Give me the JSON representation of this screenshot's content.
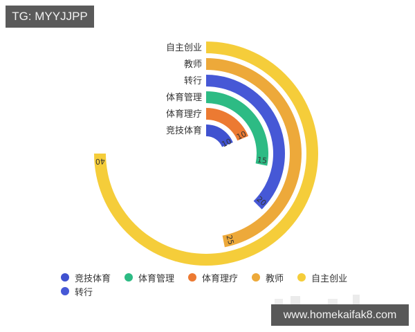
{
  "watermark_top": "TG: MYYJJPP",
  "watermark_bottom": "www.homekaifak8.com",
  "chart_data": {
    "type": "radial-bar",
    "title": "",
    "categories": [
      "自主创业",
      "教师",
      "转行",
      "体育管理",
      "体育理疗",
      "竞技体育"
    ],
    "values": [
      40,
      25,
      20,
      15,
      10,
      10
    ],
    "colors": [
      "#f5cd3a",
      "#eda93a",
      "#4658d6",
      "#2dbb84",
      "#ec7a32",
      "#4052d0"
    ],
    "angle_max": 53.33,
    "start_angle": "top (12 o'clock), clockwise",
    "legend": [
      {
        "label": "竞技体育",
        "color": "#4052d0"
      },
      {
        "label": "体育管理",
        "color": "#2dbb84"
      },
      {
        "label": "体育理疗",
        "color": "#ec7a32"
      },
      {
        "label": "教师",
        "color": "#eda93a"
      },
      {
        "label": "自主创业",
        "color": "#f5cd3a"
      },
      {
        "label": "转行",
        "color": "#4658d6"
      }
    ],
    "legend_position": "bottom",
    "grid": false
  }
}
